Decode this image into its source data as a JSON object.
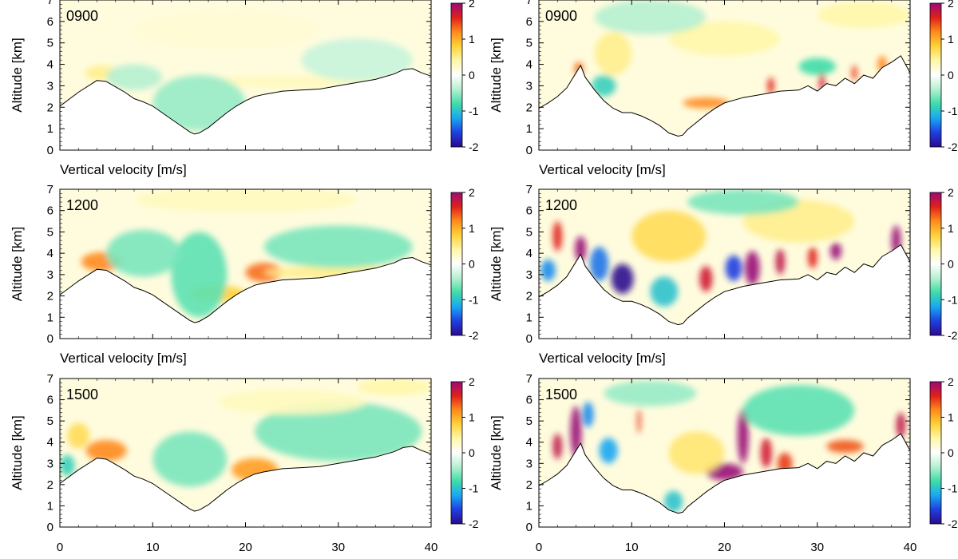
{
  "chart_data": {
    "type": "heatmap",
    "colormap": [
      "#2b0a8f",
      "#1f3fe0",
      "#19a7f2",
      "#3fdca8",
      "#b5f0d0",
      "#ffffff",
      "#fff7a8",
      "#ffd23a",
      "#ff8a1c",
      "#e0201a",
      "#9a0a78"
    ],
    "xlim": [
      0,
      40
    ],
    "ylim": [
      0,
      7
    ],
    "x_ticks": [
      "0",
      "10",
      "20",
      "30",
      "40"
    ],
    "y_ticks": [
      "0",
      "1",
      "2",
      "3",
      "4",
      "5",
      "6",
      "7"
    ],
    "colorbar_ticks": [
      "2",
      "1",
      "0",
      "-1",
      "-2"
    ],
    "colorbar_range": [
      -2,
      2
    ],
    "terrain_left": {
      "x": [
        0,
        2,
        4,
        5,
        6,
        7,
        8,
        9,
        10,
        11,
        12,
        13,
        14,
        14.5,
        15,
        16,
        17,
        18,
        19,
        20,
        21,
        22,
        24,
        26,
        28,
        30,
        32,
        34,
        36,
        37,
        38,
        39,
        40
      ],
      "y": [
        2.05,
        2.7,
        3.25,
        3.2,
        2.95,
        2.7,
        2.4,
        2.25,
        2.05,
        1.75,
        1.45,
        1.15,
        0.85,
        0.75,
        0.8,
        1.05,
        1.4,
        1.75,
        2.05,
        2.3,
        2.5,
        2.6,
        2.75,
        2.8,
        2.85,
        3.0,
        3.15,
        3.3,
        3.55,
        3.75,
        3.8,
        3.6,
        3.45
      ]
    },
    "terrain_right": {
      "x": [
        0,
        1,
        2,
        3,
        4,
        4.5,
        5,
        6,
        7,
        8,
        9,
        10,
        11,
        12,
        13,
        14,
        15,
        15.5,
        16,
        17,
        18,
        19,
        20,
        22,
        24,
        26,
        28,
        29,
        30,
        31,
        32,
        33,
        34,
        35,
        36,
        37,
        38,
        39,
        40
      ],
      "y": [
        1.95,
        2.2,
        2.5,
        2.9,
        3.6,
        3.95,
        3.4,
        2.8,
        2.3,
        1.95,
        1.75,
        1.75,
        1.6,
        1.4,
        1.15,
        0.8,
        0.65,
        0.7,
        0.95,
        1.3,
        1.65,
        1.95,
        2.2,
        2.45,
        2.6,
        2.75,
        2.8,
        3.0,
        2.75,
        3.1,
        3.0,
        3.35,
        3.1,
        3.5,
        3.35,
        3.85,
        4.1,
        4.4,
        3.6
      ]
    },
    "panels": [
      {
        "time": "0900",
        "column": 0,
        "row": 0,
        "xlabel": "Vertical velocity [m/s]",
        "ylabel": "Altitude [km]",
        "features": [
          {
            "x": 4.5,
            "y": 3.6,
            "v": 0.5,
            "rx": 1.8,
            "ry": 0.35
          },
          {
            "x": 25,
            "y": 3.2,
            "v": 0.3,
            "rx": 10,
            "ry": 0.3
          },
          {
            "x": 15,
            "y": 2.2,
            "v": -0.5,
            "rx": 5,
            "ry": 1.3
          },
          {
            "x": 8,
            "y": 3.4,
            "v": -0.4,
            "rx": 3,
            "ry": 0.6
          },
          {
            "x": 32,
            "y": 4.2,
            "v": -0.3,
            "rx": 6,
            "ry": 1.0
          },
          {
            "x": 18,
            "y": 5.6,
            "v": 0.2,
            "rx": 10,
            "ry": 0.9
          }
        ]
      },
      {
        "time": "1200",
        "column": 0,
        "row": 1,
        "xlabel": "Vertical velocity [m/s]",
        "ylabel": "Altitude [km]",
        "features": [
          {
            "x": 4.5,
            "y": 3.6,
            "v": 1.2,
            "rx": 2.2,
            "ry": 0.45
          },
          {
            "x": 22,
            "y": 3.1,
            "v": 1.3,
            "rx": 2.0,
            "ry": 0.45
          },
          {
            "x": 17,
            "y": 2.1,
            "v": 0.8,
            "rx": 3,
            "ry": 0.4
          },
          {
            "x": 30,
            "y": 3.1,
            "v": 0.5,
            "rx": 8,
            "ry": 0.3
          },
          {
            "x": 15,
            "y": 3.0,
            "v": -0.7,
            "rx": 3,
            "ry": 2.0
          },
          {
            "x": 9,
            "y": 4.0,
            "v": -0.6,
            "rx": 4,
            "ry": 1.1
          },
          {
            "x": 30,
            "y": 4.3,
            "v": -0.6,
            "rx": 8,
            "ry": 1.0
          },
          {
            "x": 20,
            "y": 6.5,
            "v": 0.3,
            "rx": 12,
            "ry": 0.6
          }
        ]
      },
      {
        "time": "1500",
        "column": 0,
        "row": 2,
        "xlabel": "",
        "ylabel": "Altitude [km]",
        "features": [
          {
            "x": 5,
            "y": 3.6,
            "v": 1.2,
            "rx": 2.2,
            "ry": 0.5
          },
          {
            "x": 21,
            "y": 2.7,
            "v": 1.1,
            "rx": 2.5,
            "ry": 0.55
          },
          {
            "x": 2,
            "y": 4.3,
            "v": 0.7,
            "rx": 1.2,
            "ry": 0.6
          },
          {
            "x": 0.8,
            "y": 2.9,
            "v": -0.9,
            "rx": 0.8,
            "ry": 0.5
          },
          {
            "x": 14,
            "y": 3.2,
            "v": -0.6,
            "rx": 4,
            "ry": 1.3
          },
          {
            "x": 30,
            "y": 4.5,
            "v": -0.6,
            "rx": 9,
            "ry": 1.4
          },
          {
            "x": 25,
            "y": 5.9,
            "v": 0.3,
            "rx": 8,
            "ry": 0.6
          },
          {
            "x": 36,
            "y": 6.6,
            "v": 0.4,
            "rx": 4,
            "ry": 0.4
          }
        ]
      },
      {
        "time": "0900",
        "column": 1,
        "row": 0,
        "xlabel": "Vertical velocity [m/s]",
        "ylabel": "Altitude [km]",
        "features": [
          {
            "x": 4.3,
            "y": 3.8,
            "v": 1.3,
            "rx": 0.5,
            "ry": 0.3
          },
          {
            "x": 18,
            "y": 2.2,
            "v": 1.2,
            "rx": 2.5,
            "ry": 0.25
          },
          {
            "x": 25,
            "y": 3.0,
            "v": 1.6,
            "rx": 0.35,
            "ry": 0.4
          },
          {
            "x": 30.5,
            "y": 3.2,
            "v": 1.7,
            "rx": 0.3,
            "ry": 0.5
          },
          {
            "x": 34,
            "y": 3.6,
            "v": 1.5,
            "rx": 0.3,
            "ry": 0.35
          },
          {
            "x": 37,
            "y": 4.0,
            "v": 1.2,
            "rx": 0.5,
            "ry": 0.4
          },
          {
            "x": 7,
            "y": 3.0,
            "v": -0.9,
            "rx": 1.3,
            "ry": 0.5
          },
          {
            "x": 8,
            "y": 4.5,
            "v": 0.5,
            "rx": 2,
            "ry": 1.0
          },
          {
            "x": 30,
            "y": 3.9,
            "v": -0.8,
            "rx": 2,
            "ry": 0.4
          },
          {
            "x": 20,
            "y": 5.2,
            "v": 0.4,
            "rx": 6,
            "ry": 0.8
          },
          {
            "x": 12,
            "y": 6.2,
            "v": -0.4,
            "rx": 6,
            "ry": 0.8
          },
          {
            "x": 35,
            "y": 6.3,
            "v": 0.4,
            "rx": 5,
            "ry": 0.6
          }
        ]
      },
      {
        "time": "1200",
        "column": 1,
        "row": 1,
        "xlabel": "Vertical velocity [m/s]",
        "ylabel": "Altitude [km]",
        "features": [
          {
            "x": 4.5,
            "y": 4.2,
            "v": 2.0,
            "rx": 0.6,
            "ry": 0.6
          },
          {
            "x": 2,
            "y": 4.8,
            "v": 1.6,
            "rx": 0.5,
            "ry": 0.7
          },
          {
            "x": 9,
            "y": 2.8,
            "v": -2.0,
            "rx": 1.2,
            "ry": 0.7
          },
          {
            "x": 6.5,
            "y": 3.5,
            "v": -1.4,
            "rx": 1.0,
            "ry": 0.8
          },
          {
            "x": 1,
            "y": 3.2,
            "v": -1.3,
            "rx": 0.8,
            "ry": 0.5
          },
          {
            "x": 13.5,
            "y": 2.2,
            "v": -1.0,
            "rx": 1.5,
            "ry": 0.7
          },
          {
            "x": 18,
            "y": 2.8,
            "v": 1.7,
            "rx": 0.7,
            "ry": 0.6
          },
          {
            "x": 21,
            "y": 3.3,
            "v": -1.6,
            "rx": 0.9,
            "ry": 0.6
          },
          {
            "x": 23,
            "y": 3.3,
            "v": 2.0,
            "rx": 0.8,
            "ry": 0.8
          },
          {
            "x": 26,
            "y": 3.6,
            "v": 1.8,
            "rx": 0.5,
            "ry": 0.6
          },
          {
            "x": 29.5,
            "y": 3.8,
            "v": 1.6,
            "rx": 0.5,
            "ry": 0.5
          },
          {
            "x": 32,
            "y": 4.1,
            "v": 2.0,
            "rx": 0.6,
            "ry": 0.4
          },
          {
            "x": 38.5,
            "y": 4.6,
            "v": 2.0,
            "rx": 0.5,
            "ry": 0.7
          },
          {
            "x": 14,
            "y": 4.8,
            "v": 0.7,
            "rx": 4,
            "ry": 1.2
          },
          {
            "x": 28,
            "y": 5.5,
            "v": 0.5,
            "rx": 6,
            "ry": 1.0
          },
          {
            "x": 22,
            "y": 6.4,
            "v": -0.6,
            "rx": 6,
            "ry": 0.6
          }
        ]
      },
      {
        "time": "1500",
        "column": 1,
        "row": 2,
        "xlabel": "",
        "ylabel": "Altitude [km]",
        "features": [
          {
            "x": 4.0,
            "y": 4.5,
            "v": 2.0,
            "rx": 0.6,
            "ry": 1.2
          },
          {
            "x": 2,
            "y": 3.8,
            "v": 1.8,
            "rx": 0.5,
            "ry": 0.6
          },
          {
            "x": 5.3,
            "y": 5.3,
            "v": -1.3,
            "rx": 0.6,
            "ry": 0.6
          },
          {
            "x": 7.5,
            "y": 3.6,
            "v": -1.2,
            "rx": 1.0,
            "ry": 0.6
          },
          {
            "x": 10.8,
            "y": 5.0,
            "v": 1.5,
            "rx": 0.2,
            "ry": 0.6
          },
          {
            "x": 14.5,
            "y": 1.2,
            "v": -1.0,
            "rx": 1.0,
            "ry": 0.5
          },
          {
            "x": 20,
            "y": 2.6,
            "v": 2.0,
            "rx": 2.0,
            "ry": 0.4
          },
          {
            "x": 22,
            "y": 4.3,
            "v": 2.0,
            "rx": 0.6,
            "ry": 1.3
          },
          {
            "x": 24.5,
            "y": 3.5,
            "v": 1.7,
            "rx": 0.6,
            "ry": 0.7
          },
          {
            "x": 26.5,
            "y": 3.0,
            "v": 1.5,
            "rx": 0.8,
            "ry": 0.5
          },
          {
            "x": 33,
            "y": 3.8,
            "v": 1.4,
            "rx": 2.0,
            "ry": 0.3
          },
          {
            "x": 39,
            "y": 4.8,
            "v": 1.8,
            "rx": 0.5,
            "ry": 0.6
          },
          {
            "x": 17,
            "y": 3.5,
            "v": 0.6,
            "rx": 3,
            "ry": 1.0
          },
          {
            "x": 28,
            "y": 5.5,
            "v": -0.7,
            "rx": 6,
            "ry": 1.2
          },
          {
            "x": 12,
            "y": 6.3,
            "v": -0.5,
            "rx": 5,
            "ry": 0.6
          }
        ]
      }
    ]
  }
}
